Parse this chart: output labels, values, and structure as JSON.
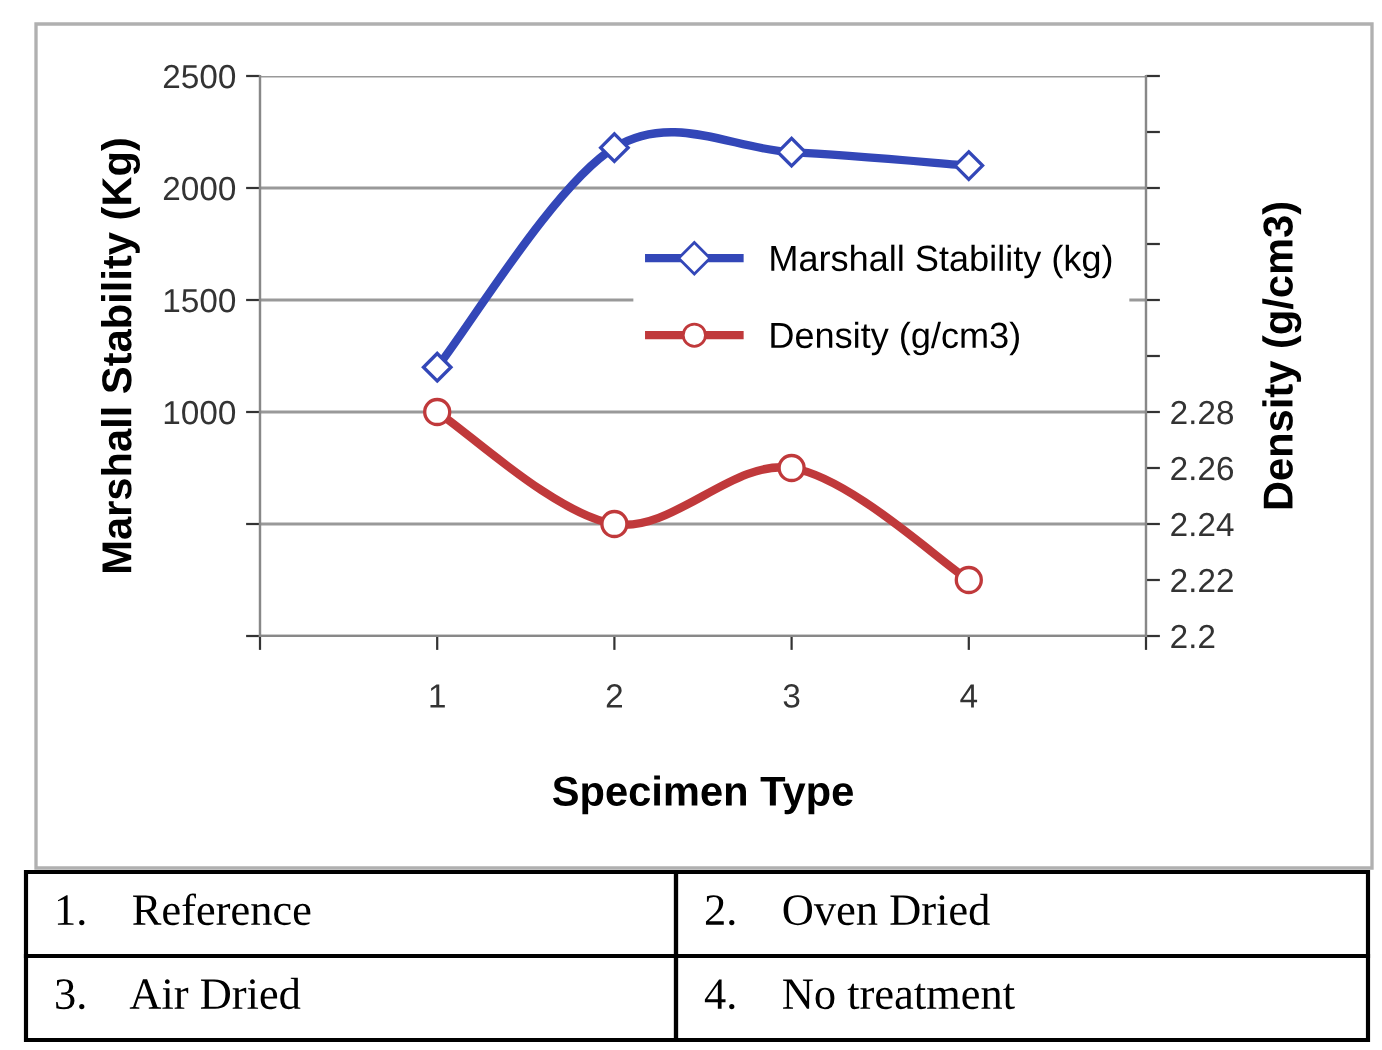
{
  "chart_data": {
    "type": "line",
    "xlabel": "Specimen Type",
    "ylabel": "Marshall Stability (Kg)",
    "y2label": "Density (g/cm3)",
    "x": [
      1,
      2,
      3,
      4
    ],
    "series": [
      {
        "name": "Marshall Stability (kg)",
        "color": "#3347b8",
        "values": [
          1200,
          2180,
          2160,
          2100
        ],
        "marker": "diamond"
      },
      {
        "name": "Density (g/cm3)",
        "color": "#c0393b",
        "values": [
          2.28,
          2.24,
          2.26,
          2.22
        ],
        "marker": "circle",
        "axis": "y2"
      }
    ],
    "xlim": [
      0,
      5
    ],
    "xticks": [
      {
        "value": 0,
        "label": null
      },
      1,
      2,
      3,
      4,
      {
        "value": 5,
        "label": null
      }
    ],
    "ylim": [
      0,
      2500
    ],
    "yticks": [
      {
        "value": 0,
        "label": null
      },
      {
        "value": 500,
        "label": null
      },
      1000,
      1500,
      2000,
      2500
    ],
    "y2lim": [
      2.2,
      2.4
    ],
    "y2ticks": [
      2.2,
      2.22,
      2.24,
      2.26,
      2.28,
      {
        "value": 2.3,
        "label": null
      },
      {
        "value": 2.32,
        "label": null
      },
      {
        "value": 2.34,
        "label": null
      },
      {
        "value": 2.36,
        "label": null
      },
      {
        "value": 2.38,
        "label": null
      },
      {
        "value": 2.4,
        "label": null
      }
    ],
    "grid": "y",
    "legend": "right",
    "line_style": "solid",
    "annotations": [
      "1.    Reference",
      "2.    Oven Dried",
      "3.    Air Dried",
      "4.    No treatment"
    ]
  }
}
